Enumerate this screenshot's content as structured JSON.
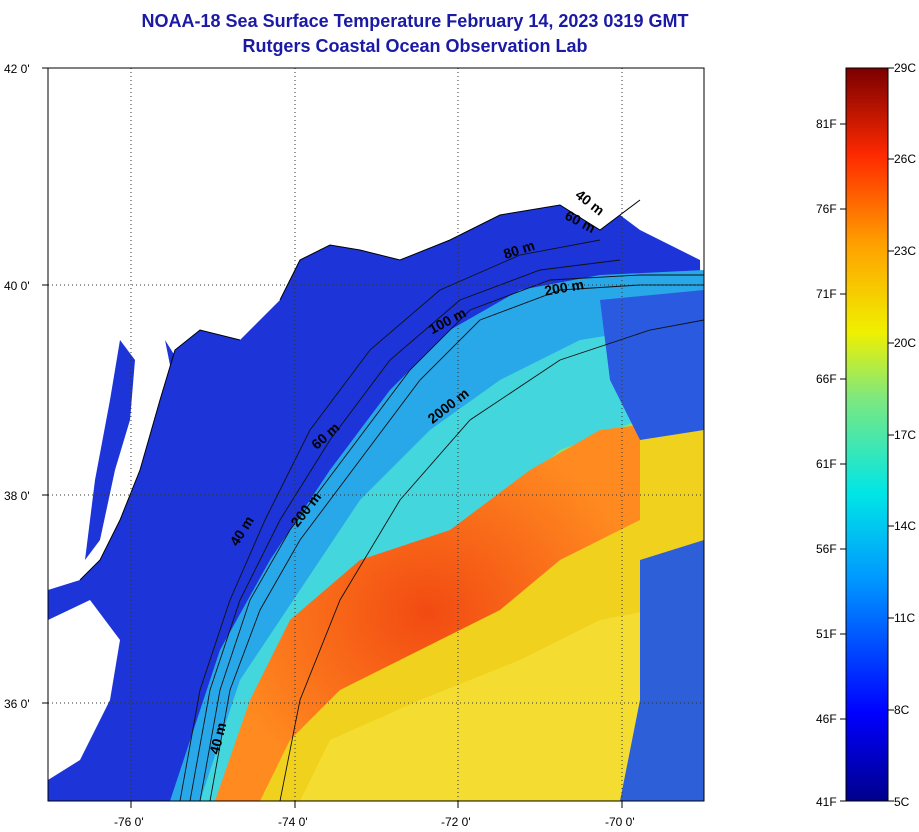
{
  "title": {
    "line1": "NOAA-18 Sea Surface Temperature February 14, 2023 0319 GMT",
    "line2": "Rutgers Coastal Ocean Observation Lab"
  },
  "map": {
    "lat_labels": [
      "42 0'",
      "40 0'",
      "38 0'",
      "36 0'"
    ],
    "lon_labels": [
      "-76 0'",
      "-74 0'",
      "-72 0'",
      "-70 0'"
    ],
    "contour_labels": [
      "40 m",
      "60 m",
      "80 m",
      "200 m",
      "100 m",
      "2000 m",
      "60 m",
      "40 m",
      "200 m",
      "40 m"
    ],
    "colors": {
      "land": "#ffffff",
      "cold": "#1a2ed6",
      "warm": "#ee3a12"
    }
  },
  "colorbar": {
    "fahrenheit_labels": [
      "81F",
      "76F",
      "71F",
      "66F",
      "61F",
      "56F",
      "51F",
      "46F",
      "41F"
    ],
    "celsius_labels": [
      "29C",
      "26C",
      "23C",
      "20C",
      "17C",
      "14C",
      "11C",
      "8C",
      "5C"
    ]
  }
}
